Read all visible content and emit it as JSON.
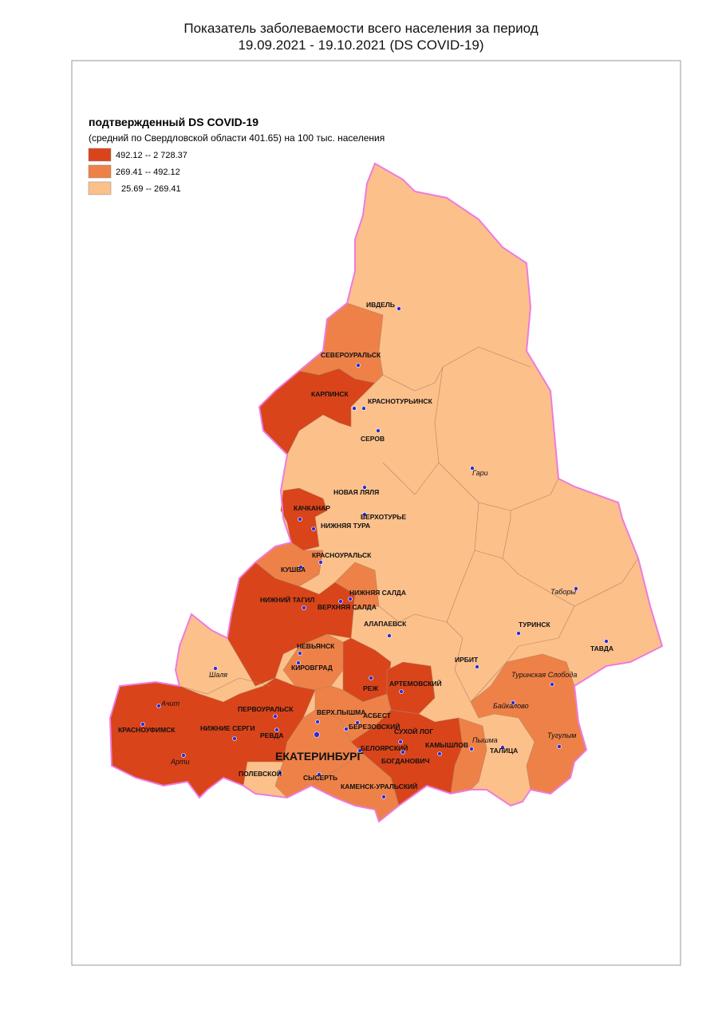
{
  "title": {
    "line1": "Показатель заболеваемости всего населения за период",
    "line2": "19.09.2021 - 19.10.2021 (DS  COVID-19)"
  },
  "legend": {
    "title": "подтвержденный DS  COVID-19",
    "subtitle": "(средний по Свердловской области 401.65)  на 100 тыс. населения",
    "items": [
      {
        "label": "492.12 -- 2 728.37",
        "color": "#d9441a"
      },
      {
        "label": "269.41 --    492.12",
        "color": "#ee8148"
      },
      {
        "label": "25.69 --    269.41",
        "color": "#fcc08b"
      }
    ]
  },
  "places": [
    "ИВДЕЛЬ",
    "СЕВЕРОУРАЛЬСК",
    "КАРПИНСК",
    "КРАСНОТУРЬИНСК",
    "СЕРОВ",
    "Гари",
    "НОВАЯ ЛЯЛЯ",
    "КАЧКАНАР",
    "ВЕРХОТУРЬЕ",
    "НИЖНЯЯ ТУРА",
    "КРАСНОУРАЛЬСК",
    "КУШВА",
    "Таборы",
    "НИЖНЯЯ САЛДА",
    "НИЖНИЙ ТАГИЛ",
    "ВЕРХНЯЯ САЛДА",
    "ТУРИНСК",
    "АЛАПАЕВСК",
    "ТАВДА",
    "НЕВЬЯНСК",
    "Шаля",
    "КИРОВГРАД",
    "ИРБИТ",
    "Туринская Слобода",
    "АРТЕМОВСКИЙ",
    "РЕЖ",
    "Ачит",
    "Байкалово",
    "ПЕРВОУРАЛЬСК",
    "ВЕРХ.ПЫШМА",
    "АСБЕСТ",
    "КРАСНОУФИМСК",
    "НИЖНИЕ СЕРГИ",
    "БЕРЕЗОВСКИЙ",
    "СУХОЙ ЛОГ",
    "РЕВДА",
    "Тугулым",
    "Пышма",
    "ЕКАТЕРИНБУРГ",
    "БЕЛОЯРСКИЙ",
    "КАМЫШЛОВ",
    "ТАЛИЦА",
    "Арти",
    "БОГДАНОВИЧ",
    "ПОЛЕВСКОЙ",
    "СЫСЕРТЬ",
    "КАМЕНСК-УРАЛЬСКИЙ"
  ]
}
